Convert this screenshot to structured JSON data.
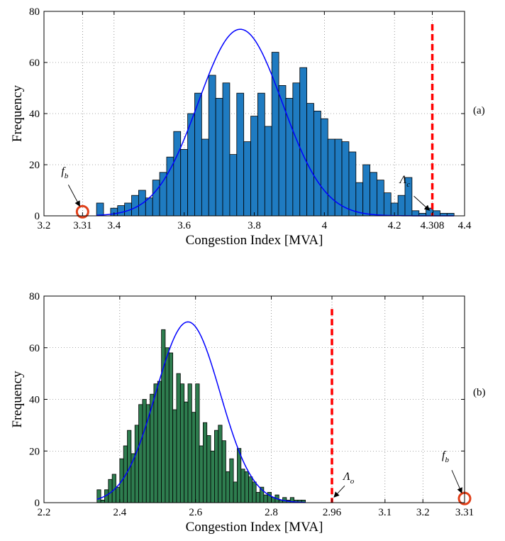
{
  "chart_data": [
    {
      "type": "bar",
      "panel_label": "(a)",
      "xlabel": "Congestion Index [MVA]",
      "ylabel": "Frequency",
      "xlim": [
        3.2,
        4.4
      ],
      "ylim": [
        0,
        80
      ],
      "xticks": [
        3.2,
        3.31,
        3.4,
        3.6,
        3.8,
        4.0,
        4.2,
        4.308,
        4.4
      ],
      "xtick_labels": [
        "3.2",
        "3.31",
        "3.4",
        "3.6",
        "3.8",
        "4",
        "4.2",
        "4.308",
        "4.4"
      ],
      "yticks": [
        0,
        20,
        40,
        60,
        80
      ],
      "ytick_labels": [
        "0",
        "20",
        "40",
        "60",
        "80"
      ],
      "grid": true,
      "bar_color": "#1F7BC1",
      "curve_color": "#0000FF",
      "threshold_color": "#FF0000",
      "marker_color": "#E0401A",
      "bin_start": 3.35,
      "bin_width": 0.02,
      "values": [
        5,
        0,
        3,
        4,
        5,
        8,
        10,
        7,
        14,
        17,
        23,
        33,
        26,
        40,
        48,
        30,
        55,
        46,
        52,
        24,
        48,
        29,
        39,
        48,
        35,
        64,
        51,
        46,
        52,
        58,
        44,
        41,
        38,
        30,
        30,
        29,
        25,
        13,
        20,
        17,
        14,
        9,
        5,
        8,
        15,
        2,
        1,
        3,
        2,
        1,
        1
      ],
      "fit_curve": {
        "mean": 3.76,
        "std": 0.12,
        "peak": 73
      },
      "threshold": {
        "x": 4.308,
        "ymax": 75
      },
      "marker": {
        "x": 3.31,
        "y": 1.6
      },
      "annotations": {
        "marker": {
          "label": "f",
          "sub": "b"
        },
        "threshold": {
          "label": "Λ",
          "sub": "c"
        }
      }
    },
    {
      "type": "bar",
      "panel_label": "(b)",
      "xlabel": "Congestion Index [MVA]",
      "ylabel": "Frequency",
      "xlim": [
        2.2,
        3.31
      ],
      "ylim": [
        0,
        80
      ],
      "xticks": [
        2.2,
        2.4,
        2.6,
        2.8,
        2.96,
        3.1,
        3.2,
        3.31
      ],
      "xtick_labels": [
        "2.2",
        "2.4",
        "2.6",
        "2.8",
        "2.96",
        "3.1",
        "3.2",
        "3.31"
      ],
      "yticks": [
        0,
        20,
        40,
        60,
        80
      ],
      "ytick_labels": [
        "0",
        "20",
        "40",
        "60",
        "80"
      ],
      "grid": true,
      "bar_color": "#2E7D4F",
      "curve_color": "#0000FF",
      "threshold_color": "#FF0000",
      "marker_color": "#E0401A",
      "bin_start": 2.34,
      "bin_width": 0.01,
      "values": [
        5,
        1,
        5,
        9,
        11,
        6,
        17,
        22,
        28,
        19,
        30,
        38,
        40,
        38,
        42,
        46,
        47,
        67,
        60,
        58,
        36,
        50,
        46,
        39,
        46,
        35,
        46,
        22,
        31,
        26,
        20,
        28,
        30,
        24,
        12,
        17,
        8,
        21,
        13,
        12,
        10,
        8,
        4,
        6,
        3,
        4,
        2,
        3,
        1,
        2,
        1,
        2,
        1,
        1,
        1
      ],
      "fit_curve": {
        "mean": 2.58,
        "std": 0.085,
        "peak": 70
      },
      "threshold": {
        "x": 2.96,
        "ymax": 75
      },
      "marker": {
        "x": 3.31,
        "y": 1.6
      },
      "annotations": {
        "marker": {
          "label": "f",
          "sub": "b"
        },
        "threshold": {
          "label": "Λ",
          "sub": "o"
        }
      }
    }
  ]
}
